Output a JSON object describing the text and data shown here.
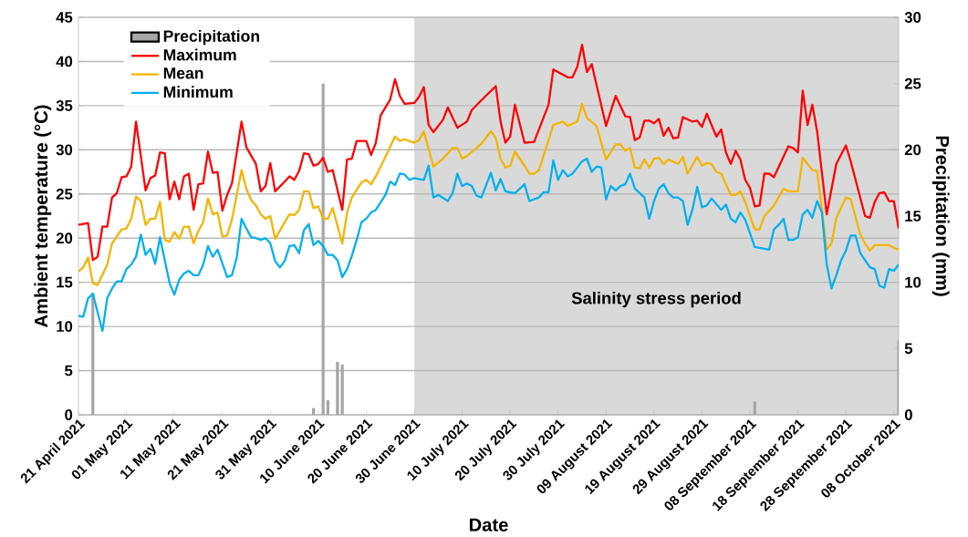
{
  "chart_data": {
    "type": "line",
    "xlabel": "Date",
    "ylabel": "Ambient temperature (°C)",
    "y2label": "Precipitation (mm)",
    "xlim": [
      "2021-04-21",
      "2021-10-09"
    ],
    "xticks": [
      {
        "value": "2021-04-21",
        "label": "21 April 2021"
      },
      {
        "value": "2021-05-01",
        "label": "01 May 2021"
      },
      {
        "value": "2021-05-11",
        "label": "11 May 2021"
      },
      {
        "value": "2021-05-21",
        "label": "21 May 2021"
      },
      {
        "value": "2021-05-31",
        "label": "31 May 2021"
      },
      {
        "value": "2021-06-10",
        "label": "10 June 2021"
      },
      {
        "value": "2021-06-20",
        "label": "20 June 2021"
      },
      {
        "value": "2021-06-30",
        "label": "30 June 2021"
      },
      {
        "value": "2021-07-10",
        "label": "10 July 2021"
      },
      {
        "value": "2021-07-20",
        "label": "20 July 2021"
      },
      {
        "value": "2021-07-30",
        "label": "30 July 2021"
      },
      {
        "value": "2021-08-09",
        "label": "09 August 2021"
      },
      {
        "value": "2021-08-19",
        "label": "19 August 2021"
      },
      {
        "value": "2021-08-29",
        "label": "29 August 2021"
      },
      {
        "value": "2021-09-08",
        "label": "08 September 2021"
      },
      {
        "value": "2021-09-18",
        "label": "18 September 2021"
      },
      {
        "value": "2021-09-28",
        "label": "28 September 2021"
      },
      {
        "value": "2021-10-08",
        "label": "08 October 2021"
      }
    ],
    "ylim": [
      0,
      45
    ],
    "yticks": [
      0,
      5,
      10,
      15,
      20,
      25,
      30,
      35,
      40,
      45
    ],
    "y2lim": [
      0,
      30
    ],
    "y2ticks": [
      0,
      5,
      10,
      15,
      20,
      25,
      30
    ],
    "grid": "y",
    "legend": "top left",
    "bands": [
      {
        "axis": "x",
        "from": "2021-06-30",
        "to": "2021-10-09",
        "label": "Salinity stress period",
        "color": "#d9d9d9"
      }
    ],
    "series": [
      {
        "name": "Precipitation",
        "type": "bar",
        "axis": "y2",
        "color": "#a6a6a6",
        "x": [
          "2021-04-24",
          "2021-06-09",
          "2021-06-11",
          "2021-06-12",
          "2021-06-14",
          "2021-06-15",
          "2021-09-09",
          "2021-10-09"
        ],
        "values": [
          9.2,
          0.5,
          25.0,
          1.1,
          4.0,
          3.8,
          1.0,
          5.6
        ]
      },
      {
        "name": "Maximum",
        "color": "#ff0000",
        "x": [
          "2021-04-21",
          "2021-04-23",
          "2021-04-24",
          "2021-04-25",
          "2021-04-26",
          "2021-04-27",
          "2021-04-28",
          "2021-04-29",
          "2021-04-30",
          "2021-05-01",
          "2021-05-02",
          "2021-05-03",
          "2021-05-05",
          "2021-05-06",
          "2021-05-07",
          "2021-05-08",
          "2021-05-09",
          "2021-05-10",
          "2021-05-11",
          "2021-05-12",
          "2021-05-13",
          "2021-05-14",
          "2021-05-15",
          "2021-05-16",
          "2021-05-17",
          "2021-05-18",
          "2021-05-19",
          "2021-05-20",
          "2021-05-21",
          "2021-05-22",
          "2021-05-23",
          "2021-05-25",
          "2021-05-26",
          "2021-05-28",
          "2021-05-29",
          "2021-05-30",
          "2021-05-31",
          "2021-06-01",
          "2021-06-03",
          "2021-06-04",
          "2021-06-05",
          "2021-06-06",
          "2021-06-07",
          "2021-06-08",
          "2021-06-09",
          "2021-06-10",
          "2021-06-11",
          "2021-06-12",
          "2021-06-13",
          "2021-06-15",
          "2021-06-16",
          "2021-06-17",
          "2021-06-18",
          "2021-06-20",
          "2021-06-21",
          "2021-06-22",
          "2021-06-23",
          "2021-06-25",
          "2021-06-26",
          "2021-06-27",
          "2021-06-28",
          "2021-06-30",
          "2021-07-01",
          "2021-07-02",
          "2021-07-03",
          "2021-07-04",
          "2021-07-06",
          "2021-07-07",
          "2021-07-09",
          "2021-07-11",
          "2021-07-12",
          "2021-07-14",
          "2021-07-17",
          "2021-07-18",
          "2021-07-19",
          "2021-07-20",
          "2021-07-21",
          "2021-07-23",
          "2021-07-25",
          "2021-07-28",
          "2021-07-29",
          "2021-08-01",
          "2021-08-02",
          "2021-08-03",
          "2021-08-04",
          "2021-08-05",
          "2021-08-06",
          "2021-08-09",
          "2021-08-11",
          "2021-08-13",
          "2021-08-14",
          "2021-08-15",
          "2021-08-16",
          "2021-08-17",
          "2021-08-18",
          "2021-08-19",
          "2021-08-20",
          "2021-08-21",
          "2021-08-22",
          "2021-08-23",
          "2021-08-24",
          "2021-08-25",
          "2021-08-27",
          "2021-08-28",
          "2021-08-29",
          "2021-08-30",
          "2021-09-01",
          "2021-09-02",
          "2021-09-03",
          "2021-09-04",
          "2021-09-05",
          "2021-09-06",
          "2021-09-07",
          "2021-09-08",
          "2021-09-09",
          "2021-09-10",
          "2021-09-11",
          "2021-09-12",
          "2021-09-13",
          "2021-09-16",
          "2021-09-17",
          "2021-09-18",
          "2021-09-19",
          "2021-09-20",
          "2021-09-21",
          "2021-09-22",
          "2021-09-24",
          "2021-09-26",
          "2021-09-28",
          "2021-09-29",
          "2021-10-02",
          "2021-10-03",
          "2021-10-04",
          "2021-10-05",
          "2021-10-06",
          "2021-10-07",
          "2021-10-08",
          "2021-10-09"
        ],
        "values": [
          21.5,
          21.7,
          17.5,
          17.9,
          21.3,
          21.3,
          24.6,
          25.1,
          26.9,
          27.0,
          28.1,
          33.2,
          25.4,
          26.8,
          27.1,
          29.7,
          29.6,
          24.4,
          26.4,
          24.4,
          27.0,
          27.3,
          23.2,
          26.1,
          26.2,
          29.8,
          27.4,
          27.5,
          23.1,
          24.9,
          26.2,
          33.2,
          30.3,
          28.4,
          25.3,
          25.9,
          28.5,
          25.3,
          26.4,
          27.0,
          26.6,
          27.6,
          29.6,
          29.5,
          28.2,
          28.4,
          29.1,
          27.5,
          27.7,
          23.2,
          28.9,
          29.0,
          31.0,
          31.0,
          29.4,
          30.8,
          33.9,
          35.7,
          38.0,
          36.1,
          35.2,
          35.3,
          36.0,
          37.1,
          32.8,
          32.0,
          33.4,
          34.8,
          32.5,
          33.2,
          34.5,
          35.6,
          37.2,
          33.2,
          30.8,
          31.5,
          35.1,
          30.8,
          30.9,
          35.1,
          39.1,
          38.2,
          38.2,
          39.4,
          41.9,
          38.8,
          39.7,
          32.7,
          36.1,
          33.8,
          33.7,
          31.1,
          31.4,
          33.3,
          33.3,
          33.0,
          33.5,
          31.6,
          32.5,
          31.3,
          31.4,
          33.7,
          33.2,
          33.3,
          32.6,
          34.1,
          31.5,
          32.3,
          29.7,
          28.4,
          29.9,
          28.9,
          26.6,
          25.7,
          23.6,
          23.7,
          27.3,
          27.3,
          26.9,
          30.4,
          30.2,
          29.7,
          36.7,
          32.8,
          35.1,
          32.1,
          22.7,
          28.4,
          30.5,
          28.7,
          22.5,
          22.3,
          24.1,
          25.1,
          25.2,
          24.2,
          24.2,
          21.1
        ]
      },
      {
        "name": "Mean",
        "color": "#f5b400",
        "x": [
          "2021-04-21",
          "2021-04-22",
          "2021-04-23",
          "2021-04-24",
          "2021-04-25",
          "2021-04-27",
          "2021-04-28",
          "2021-04-30",
          "2021-05-01",
          "2021-05-02",
          "2021-05-03",
          "2021-05-04",
          "2021-05-05",
          "2021-05-06",
          "2021-05-07",
          "2021-05-08",
          "2021-05-09",
          "2021-05-10",
          "2021-05-11",
          "2021-05-12",
          "2021-05-13",
          "2021-05-14",
          "2021-05-15",
          "2021-05-16",
          "2021-05-17",
          "2021-05-18",
          "2021-05-19",
          "2021-05-20",
          "2021-05-21",
          "2021-05-22",
          "2021-05-23",
          "2021-05-25",
          "2021-05-26",
          "2021-05-27",
          "2021-05-28",
          "2021-05-29",
          "2021-05-30",
          "2021-05-31",
          "2021-06-01",
          "2021-06-03",
          "2021-06-04",
          "2021-06-05",
          "2021-06-06",
          "2021-06-07",
          "2021-06-08",
          "2021-06-09",
          "2021-06-10",
          "2021-06-11",
          "2021-06-12",
          "2021-06-13",
          "2021-06-15",
          "2021-06-16",
          "2021-06-17",
          "2021-06-19",
          "2021-06-20",
          "2021-06-21",
          "2021-06-22",
          "2021-06-24",
          "2021-06-26",
          "2021-06-27",
          "2021-06-28",
          "2021-06-30",
          "2021-07-01",
          "2021-07-02",
          "2021-07-04",
          "2021-07-06",
          "2021-07-08",
          "2021-07-09",
          "2021-07-10",
          "2021-07-11",
          "2021-07-14",
          "2021-07-16",
          "2021-07-17",
          "2021-07-18",
          "2021-07-19",
          "2021-07-20",
          "2021-07-21",
          "2021-07-23",
          "2021-07-24",
          "2021-07-25",
          "2021-07-26",
          "2021-07-29",
          "2021-07-31",
          "2021-08-01",
          "2021-08-03",
          "2021-08-04",
          "2021-08-05",
          "2021-08-07",
          "2021-08-09",
          "2021-08-11",
          "2021-08-12",
          "2021-08-13",
          "2021-08-14",
          "2021-08-15",
          "2021-08-16",
          "2021-08-17",
          "2021-08-18",
          "2021-08-19",
          "2021-08-20",
          "2021-08-21",
          "2021-08-22",
          "2021-08-24",
          "2021-08-25",
          "2021-08-26",
          "2021-08-28",
          "2021-08-29",
          "2021-08-30",
          "2021-08-31",
          "2021-09-01",
          "2021-09-02",
          "2021-09-04",
          "2021-09-05",
          "2021-09-06",
          "2021-09-07",
          "2021-09-09",
          "2021-09-10",
          "2021-09-11",
          "2021-09-13",
          "2021-09-15",
          "2021-09-16",
          "2021-09-18",
          "2021-09-19",
          "2021-09-20",
          "2021-09-21",
          "2021-09-22",
          "2021-09-24",
          "2021-09-25",
          "2021-09-26",
          "2021-09-28",
          "2021-09-29",
          "2021-10-01",
          "2021-10-02",
          "2021-10-03",
          "2021-10-04",
          "2021-10-07",
          "2021-10-08",
          "2021-10-09"
        ],
        "values": [
          16.2,
          16.7,
          17.8,
          14.9,
          14.7,
          17.0,
          19.4,
          21.0,
          21.1,
          22.2,
          24.7,
          24.2,
          21.5,
          22.2,
          22.2,
          24.1,
          19.8,
          19.6,
          20.7,
          19.9,
          21.3,
          21.3,
          19.4,
          20.8,
          21.8,
          24.5,
          22.7,
          22.9,
          20.2,
          20.3,
          22.1,
          27.7,
          25.6,
          24.3,
          23.7,
          22.7,
          22.2,
          22.5,
          19.9,
          21.8,
          22.7,
          22.6,
          23.2,
          25.3,
          25.3,
          23.4,
          23.6,
          22.2,
          22.2,
          23.4,
          19.4,
          22.9,
          24.6,
          26.3,
          26.6,
          26.1,
          27.0,
          29.2,
          31.5,
          31.0,
          31.2,
          30.8,
          31.1,
          32.1,
          28.1,
          29.0,
          30.2,
          30.2,
          29.0,
          29.3,
          30.7,
          32.1,
          31.3,
          29.0,
          28.0,
          28.2,
          29.8,
          28.2,
          27.3,
          27.3,
          27.7,
          32.8,
          33.2,
          32.7,
          33.2,
          35.2,
          33.6,
          32.7,
          28.9,
          30.6,
          30.6,
          29.9,
          30.2,
          28.0,
          27.9,
          28.9,
          28.0,
          29.0,
          29.1,
          28.4,
          28.9,
          28.4,
          29.2,
          27.3,
          29.2,
          28.2,
          28.5,
          28.4,
          27.5,
          27.3,
          24.9,
          24.9,
          25.3,
          24.1,
          21.0,
          21.0,
          22.5,
          23.7,
          25.6,
          25.3,
          25.3,
          29.1,
          28.4,
          27.7,
          27.6,
          18.7,
          19.4,
          22.3,
          24.6,
          24.4,
          20.4,
          19.4,
          18.6,
          19.2,
          19.2,
          18.9,
          18.7
        ]
      },
      {
        "name": "Minimum",
        "color": "#00b0f0",
        "x": [
          "2021-04-21",
          "2021-04-22",
          "2021-04-23",
          "2021-04-24",
          "2021-04-26",
          "2021-04-27",
          "2021-04-28",
          "2021-04-29",
          "2021-04-30",
          "2021-05-01",
          "2021-05-02",
          "2021-05-03",
          "2021-05-04",
          "2021-05-05",
          "2021-05-06",
          "2021-05-07",
          "2021-05-08",
          "2021-05-09",
          "2021-05-10",
          "2021-05-11",
          "2021-05-12",
          "2021-05-13",
          "2021-05-14",
          "2021-05-15",
          "2021-05-16",
          "2021-05-17",
          "2021-05-18",
          "2021-05-19",
          "2021-05-20",
          "2021-05-22",
          "2021-05-23",
          "2021-05-24",
          "2021-05-25",
          "2021-05-26",
          "2021-05-27",
          "2021-05-28",
          "2021-05-29",
          "2021-05-30",
          "2021-05-31",
          "2021-06-01",
          "2021-06-02",
          "2021-06-03",
          "2021-06-04",
          "2021-06-05",
          "2021-06-06",
          "2021-06-07",
          "2021-06-08",
          "2021-06-09",
          "2021-06-10",
          "2021-06-11",
          "2021-06-12",
          "2021-06-13",
          "2021-06-14",
          "2021-06-15",
          "2021-06-16",
          "2021-06-17",
          "2021-06-18",
          "2021-06-19",
          "2021-06-20",
          "2021-06-21",
          "2021-06-22",
          "2021-06-24",
          "2021-06-25",
          "2021-06-26",
          "2021-06-27",
          "2021-06-28",
          "2021-06-29",
          "2021-06-30",
          "2021-07-02",
          "2021-07-03",
          "2021-07-04",
          "2021-07-05",
          "2021-07-07",
          "2021-07-08",
          "2021-07-09",
          "2021-07-10",
          "2021-07-11",
          "2021-07-12",
          "2021-07-13",
          "2021-07-14",
          "2021-07-16",
          "2021-07-17",
          "2021-07-18",
          "2021-07-19",
          "2021-07-21",
          "2021-07-23",
          "2021-07-24",
          "2021-07-26",
          "2021-07-27",
          "2021-07-28",
          "2021-07-29",
          "2021-07-30",
          "2021-07-31",
          "2021-08-01",
          "2021-08-02",
          "2021-08-04",
          "2021-08-05",
          "2021-08-06",
          "2021-08-07",
          "2021-08-08",
          "2021-08-09",
          "2021-08-10",
          "2021-08-11",
          "2021-08-12",
          "2021-08-13",
          "2021-08-14",
          "2021-08-15",
          "2021-08-16",
          "2021-08-17",
          "2021-08-18",
          "2021-08-19",
          "2021-08-20",
          "2021-08-21",
          "2021-08-22",
          "2021-08-23",
          "2021-08-24",
          "2021-08-25",
          "2021-08-26",
          "2021-08-27",
          "2021-08-28",
          "2021-08-29",
          "2021-08-30",
          "2021-08-31",
          "2021-09-02",
          "2021-09-03",
          "2021-09-04",
          "2021-09-05",
          "2021-09-06",
          "2021-09-07",
          "2021-09-09",
          "2021-09-10",
          "2021-09-12",
          "2021-09-13",
          "2021-09-14",
          "2021-09-15",
          "2021-09-16",
          "2021-09-17",
          "2021-09-18",
          "2021-09-19",
          "2021-09-20",
          "2021-09-21",
          "2021-09-22",
          "2021-09-23",
          "2021-09-24",
          "2021-09-25",
          "2021-09-26",
          "2021-09-27",
          "2021-09-28",
          "2021-09-29",
          "2021-09-30",
          "2021-10-01",
          "2021-10-02",
          "2021-10-03",
          "2021-10-04",
          "2021-10-05",
          "2021-10-06",
          "2021-10-07",
          "2021-10-08",
          "2021-10-09"
        ],
        "values": [
          11.2,
          11.1,
          13.2,
          13.7,
          9.5,
          13.2,
          14.3,
          15.1,
          15.1,
          16.5,
          17.0,
          17.9,
          20.4,
          18.1,
          18.8,
          17.1,
          20.1,
          17.5,
          14.9,
          13.6,
          15.3,
          16.0,
          16.3,
          15.8,
          15.8,
          17.0,
          19.1,
          17.9,
          18.7,
          15.6,
          15.8,
          17.8,
          22.2,
          21.1,
          20.1,
          20.0,
          19.8,
          20.0,
          19.4,
          17.4,
          16.7,
          17.4,
          19.1,
          19.2,
          18.3,
          20.9,
          21.6,
          19.2,
          19.7,
          19.1,
          18.1,
          18.1,
          17.5,
          15.6,
          16.5,
          18.0,
          19.8,
          21.8,
          22.2,
          22.9,
          23.2,
          24.9,
          26.4,
          26.0,
          27.3,
          27.2,
          26.6,
          26.8,
          26.6,
          28.2,
          24.6,
          24.9,
          24.2,
          25.1,
          27.3,
          25.9,
          26.2,
          25.9,
          24.8,
          24.6,
          27.4,
          25.4,
          26.7,
          25.3,
          25.1,
          26.1,
          24.2,
          24.6,
          25.2,
          25.2,
          28.8,
          26.6,
          27.7,
          27.0,
          27.3,
          28.7,
          29.0,
          27.5,
          28.1,
          28.0,
          24.4,
          25.9,
          25.4,
          25.9,
          26.1,
          27.3,
          25.6,
          25.1,
          24.6,
          22.2,
          24.2,
          25.6,
          26.1,
          25.1,
          24.6,
          24.6,
          24.2,
          21.5,
          23.2,
          25.8,
          23.5,
          23.7,
          24.5,
          23.2,
          23.8,
          22.2,
          21.8,
          22.9,
          22.1,
          19.0,
          18.9,
          18.7,
          21.0,
          21.5,
          22.2,
          19.8,
          19.8,
          20.1,
          22.7,
          23.2,
          22.3,
          24.2,
          22.9,
          17.0,
          14.3,
          15.8,
          17.5,
          18.6,
          20.3,
          20.3,
          18.3,
          17.5,
          16.7,
          16.5,
          14.6,
          14.4,
          16.5,
          16.3,
          17.0
        ]
      }
    ]
  }
}
